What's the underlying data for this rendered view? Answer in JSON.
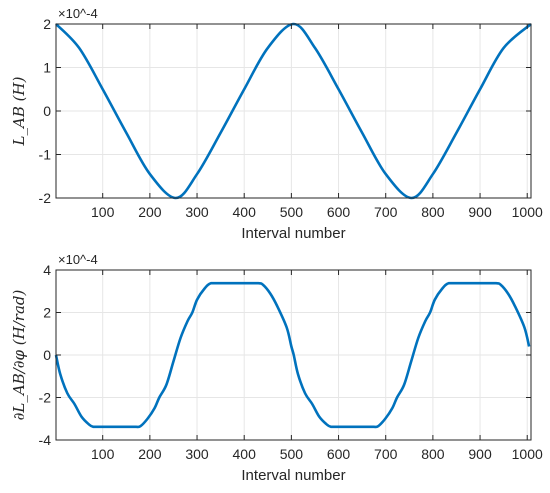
{
  "chart_data": [
    {
      "type": "line",
      "xlabel": "Interval number",
      "ylabel": "L_AB (H)",
      "exponent_label": "×10^-4",
      "x_ticks": [
        100,
        200,
        300,
        400,
        500,
        600,
        700,
        800,
        900,
        1000
      ],
      "y_ticks": [
        -2,
        -1,
        0,
        1,
        2
      ],
      "xlim": [
        1,
        1008
      ],
      "ylim": [
        -2,
        2
      ],
      "y_scale": 0.0001,
      "grid": true,
      "series": [
        {
          "color": "#0072BD",
          "x": [
            1,
            50,
            100,
            150,
            200,
            255,
            300,
            350,
            400,
            450,
            505,
            550,
            600,
            650,
            700,
            755,
            800,
            850,
            900,
            950,
            1008
          ],
          "y": [
            2.0,
            1.45,
            0.5,
            -0.5,
            -1.45,
            -2.0,
            -1.45,
            -0.5,
            0.5,
            1.45,
            2.0,
            1.45,
            0.5,
            -0.5,
            -1.45,
            -2.0,
            -1.45,
            -0.5,
            0.5,
            1.45,
            2.0
          ]
        }
      ]
    },
    {
      "type": "line",
      "xlabel": "Interval number",
      "ylabel": "∂L_AB/∂φ (H/rad)",
      "exponent_label": "×10^-4",
      "x_ticks": [
        100,
        200,
        300,
        400,
        500,
        600,
        700,
        800,
        900,
        1000
      ],
      "y_ticks": [
        -4,
        -2,
        0,
        2,
        4
      ],
      "xlim": [
        1,
        1008
      ],
      "ylim": [
        -4,
        4
      ],
      "y_scale": 0.0001,
      "grid": true,
      "series": [
        {
          "color": "#0072BD",
          "x": [
            1,
            10,
            25,
            40,
            55,
            70,
            80,
            100,
            130,
            150,
            170,
            180,
            195,
            210,
            220,
            235,
            250,
            265,
            280,
            290,
            300,
            315,
            330,
            360,
            400,
            430,
            440,
            455,
            470,
            490,
            500,
            505
          ],
          "y": [
            0.0,
            -0.9,
            -1.8,
            -2.3,
            -2.9,
            -3.25,
            -3.38,
            -3.38,
            -3.38,
            -3.38,
            -3.38,
            -3.35,
            -3.0,
            -2.5,
            -2.0,
            -1.4,
            -0.3,
            0.8,
            1.6,
            2.0,
            2.6,
            3.1,
            3.38,
            3.38,
            3.38,
            3.38,
            3.3,
            2.9,
            2.3,
            1.3,
            0.4,
            0.0
          ]
        }
      ]
    }
  ]
}
